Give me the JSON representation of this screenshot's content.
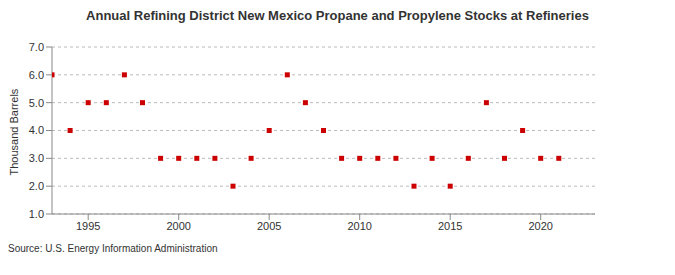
{
  "chart_data": {
    "type": "scatter",
    "title": "Annual Refining District New Mexico Propane and Propylene Stocks at Refineries",
    "y_label": "Thousand Barrels",
    "source": "Source: U.S. Energy Information Administration",
    "x": [
      1993,
      1994,
      1995,
      1996,
      1997,
      1998,
      1999,
      2000,
      2001,
      2002,
      2003,
      2004,
      2005,
      2006,
      2007,
      2008,
      2009,
      2010,
      2011,
      2012,
      2013,
      2014,
      2015,
      2016,
      2017,
      2018,
      2019,
      2020,
      2021
    ],
    "values": [
      6,
      4,
      5,
      5,
      6,
      5,
      3,
      3,
      3,
      3,
      2,
      3,
      4,
      6,
      5,
      4,
      3,
      3,
      3,
      3,
      2,
      3,
      2,
      3,
      5,
      3,
      4,
      3,
      3
    ],
    "color": "#cc0000",
    "marker": "square",
    "xlim": [
      1993,
      2023
    ],
    "xticks": [
      1995,
      2000,
      2005,
      2010,
      2015,
      2020
    ],
    "ylim": [
      1,
      7
    ],
    "yticks": [
      {
        "value": 1,
        "label": "1.0"
      },
      {
        "value": 2,
        "label": "2.0"
      },
      {
        "value": 3,
        "label": "3.0"
      },
      {
        "value": 4,
        "label": "4.0"
      },
      {
        "value": 5,
        "label": "5.0"
      },
      {
        "value": 6,
        "label": "6.0"
      },
      {
        "value": 7,
        "label": "7.0"
      }
    ],
    "grid": true
  }
}
